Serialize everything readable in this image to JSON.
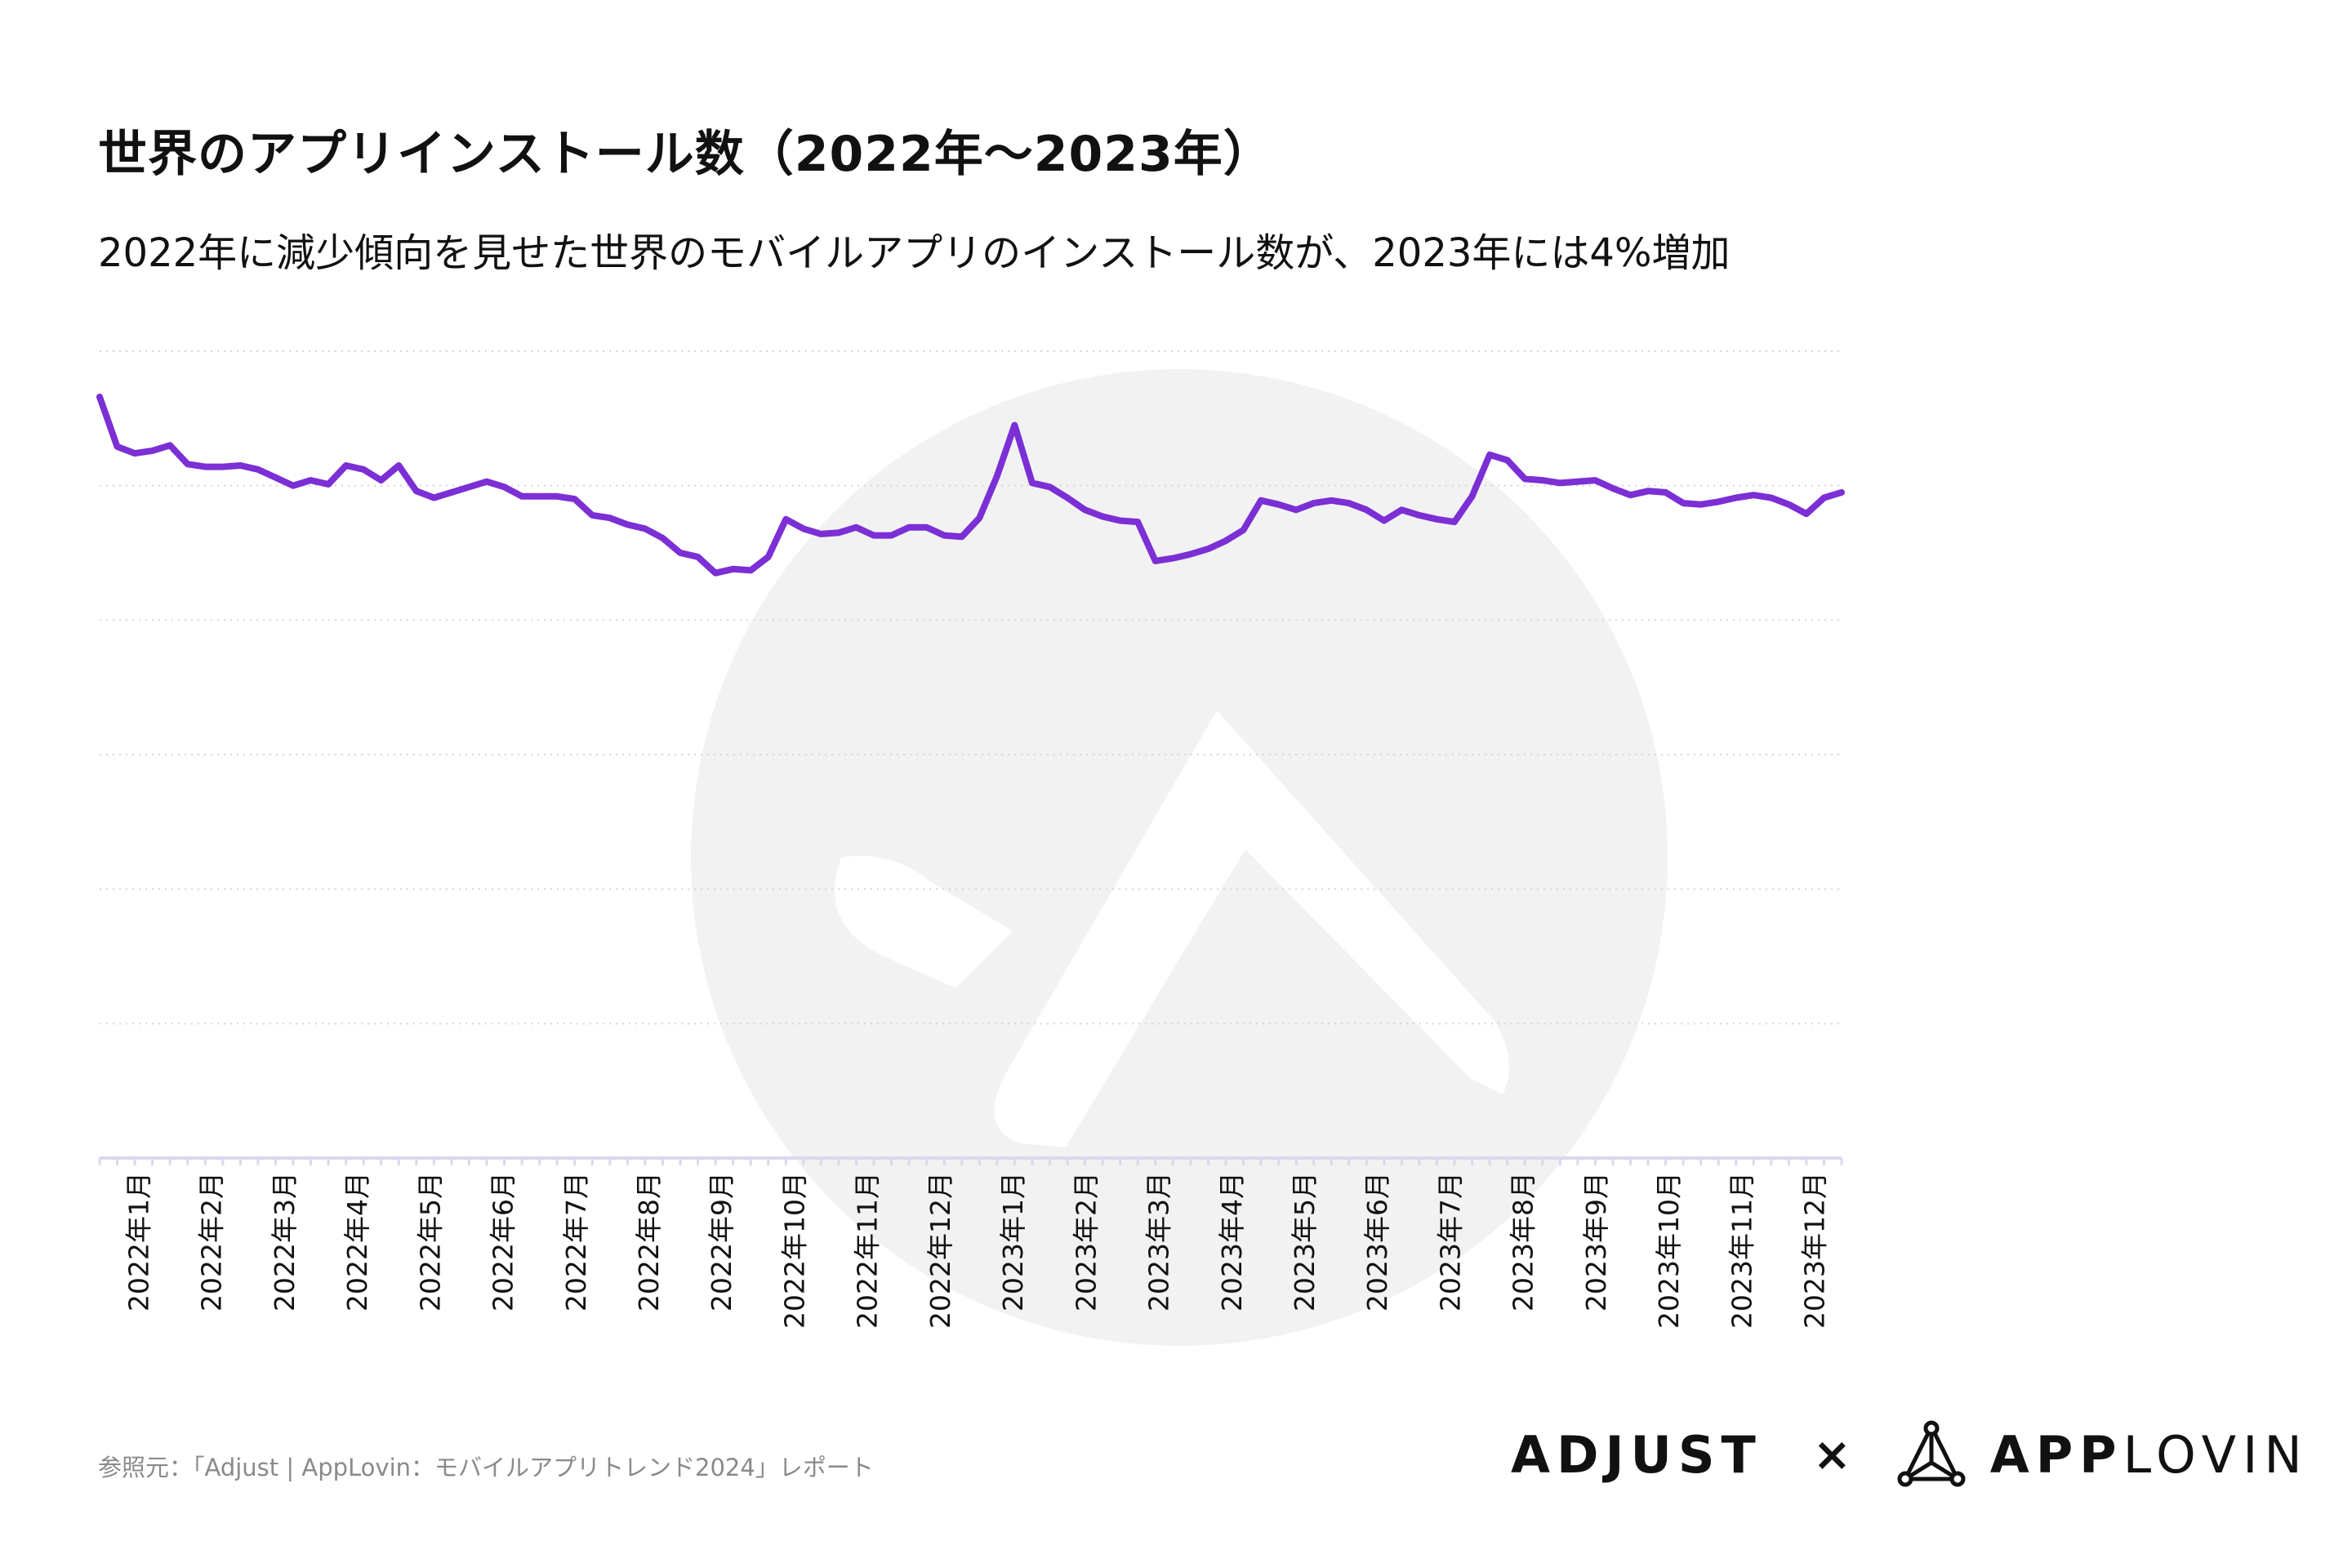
{
  "title": "世界のアプリインストール数（2022年〜2023年）",
  "subtitle": "2022年に減少傾向を見せた世界のモバイルアプリのインストール数が、2023年には4%増加",
  "source": "参照元：「Adjust | AppLovin：モバイルアプリトレンド2024」レポート",
  "logos": {
    "adjust": "ADJUST",
    "separator": "×",
    "applovin_bold": "APP",
    "applovin_light": "LOVIN"
  },
  "colors": {
    "line": "#7b2fd4",
    "grid": "#d6d6d6",
    "axis": "#dcd7f0",
    "watermark": "#f2f2f2"
  },
  "chart_data": {
    "type": "line",
    "title": "世界のアプリインストール数（2022年〜2023年）",
    "subtitle": "2022年に減少傾向を見せた世界のモバイルアプリのインストール数が、2023年には4%増加",
    "xlabel": "",
    "ylabel": "",
    "y_tick_labels_shown": false,
    "grid": "horizontal dotted",
    "ylim": [
      0,
      6
    ],
    "x_tick_labels": [
      "2022年1月",
      "2022年2月",
      "2022年3月",
      "2022年4月",
      "2022年5月",
      "2022年6月",
      "2022年7月",
      "2022年8月",
      "2022年9月",
      "2022年10月",
      "2022年11月",
      "2022年12月",
      "2023年1月",
      "2023年2月",
      "2023年3月",
      "2023年4月",
      "2023年5月",
      "2023年6月",
      "2023年7月",
      "2023年8月",
      "2023年9月",
      "2023年10月",
      "2023年11月",
      "2023年12月"
    ],
    "series": [
      {
        "values": [
          5.66,
          5.29,
          5.24,
          5.26,
          5.3,
          5.16,
          5.14,
          5.14,
          5.15,
          5.12,
          5.06,
          5.0,
          5.04,
          5.01,
          5.15,
          5.12,
          5.04,
          5.15,
          4.96,
          4.91,
          4.95,
          4.99,
          5.03,
          4.99,
          4.92,
          4.92,
          4.92,
          4.9,
          4.78,
          4.76,
          4.71,
          4.68,
          4.61,
          4.5,
          4.47,
          4.35,
          4.38,
          4.37,
          4.47,
          4.75,
          4.68,
          4.64,
          4.65,
          4.69,
          4.63,
          4.63,
          4.69,
          4.69,
          4.63,
          4.62,
          4.76,
          5.07,
          5.45,
          5.02,
          4.99,
          4.91,
          4.82,
          4.77,
          4.74,
          4.73,
          4.44,
          4.46,
          4.49,
          4.53,
          4.59,
          4.67,
          4.89,
          4.86,
          4.82,
          4.87,
          4.89,
          4.87,
          4.82,
          4.74,
          4.82,
          4.78,
          4.75,
          4.73,
          4.92,
          5.23,
          5.19,
          5.05,
          5.04,
          5.02,
          5.03,
          5.04,
          4.98,
          4.93,
          4.96,
          4.95,
          4.87,
          4.86,
          4.88,
          4.91,
          4.93,
          4.91,
          4.86,
          4.79,
          4.91,
          4.95
        ]
      }
    ]
  }
}
